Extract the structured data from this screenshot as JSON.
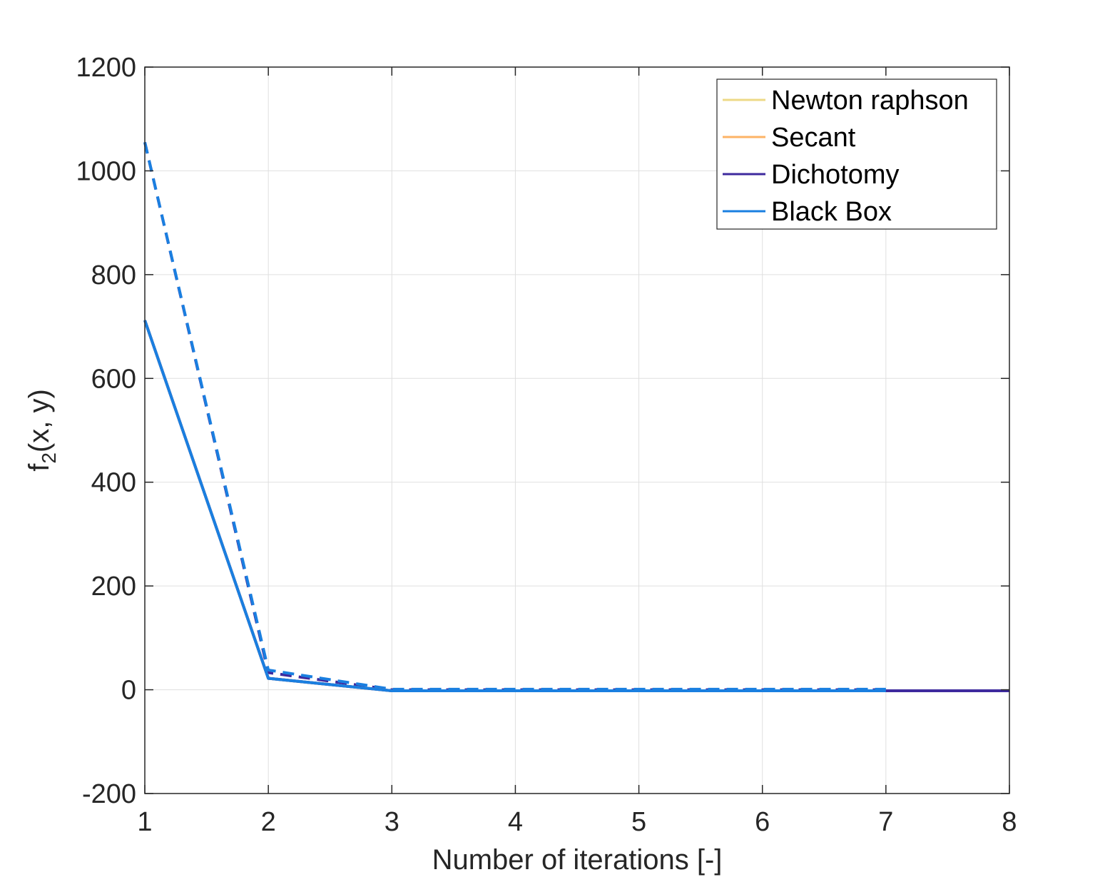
{
  "chart_data": {
    "type": "line",
    "title": "",
    "xlabel": "Number of iterations [-]",
    "ylabel_main": "f",
    "ylabel_sub": "2",
    "ylabel_rest": "(x, y)",
    "xlim": [
      1,
      8
    ],
    "ylim": [
      -200,
      1200
    ],
    "xticks": [
      1,
      2,
      3,
      4,
      5,
      6,
      7,
      8
    ],
    "yticks": [
      -200,
      0,
      200,
      400,
      600,
      800,
      1000,
      1200
    ],
    "grid": true,
    "legend_position": "top-right",
    "series": [
      {
        "name": "Newton raphson",
        "color": "#EDD987",
        "style": "solid",
        "x": [
          1,
          2,
          3,
          4,
          5,
          6,
          7
        ],
        "y": [
          712,
          22,
          -2,
          -2,
          -2,
          -2,
          -2
        ]
      },
      {
        "name": "Secant",
        "color": "#FDB366",
        "style": "solid",
        "x": [
          1,
          2,
          3,
          4,
          5,
          6,
          7
        ],
        "y": [
          712,
          22,
          -2,
          -2,
          -2,
          -2,
          -2
        ]
      },
      {
        "name": "Dichotomy",
        "color": "#3E2A9E",
        "style": "solid",
        "x": [
          1,
          2,
          3,
          4,
          5,
          6,
          7,
          8
        ],
        "y": [
          712,
          22,
          -2,
          -2,
          -2,
          -2,
          -2,
          -2
        ]
      },
      {
        "name": "Black Box",
        "color": "#1A7FE0",
        "style": "solid",
        "x": [
          1,
          2,
          3,
          4,
          5,
          6,
          7
        ],
        "y": [
          712,
          22,
          -2,
          -2,
          -2,
          -2,
          -2
        ]
      }
    ],
    "extra_lines": [
      {
        "color": "#3E2A9E",
        "style": "dashed",
        "x": [
          1,
          2,
          3,
          4,
          5,
          6,
          7
        ],
        "y": [
          1055,
          33,
          0,
          0,
          0,
          0,
          0
        ]
      },
      {
        "color": "#1A7FE0",
        "style": "dashed",
        "x": [
          1,
          2,
          3,
          4,
          5,
          6,
          7
        ],
        "y": [
          1055,
          38,
          1,
          1,
          1,
          1,
          1
        ]
      }
    ]
  }
}
